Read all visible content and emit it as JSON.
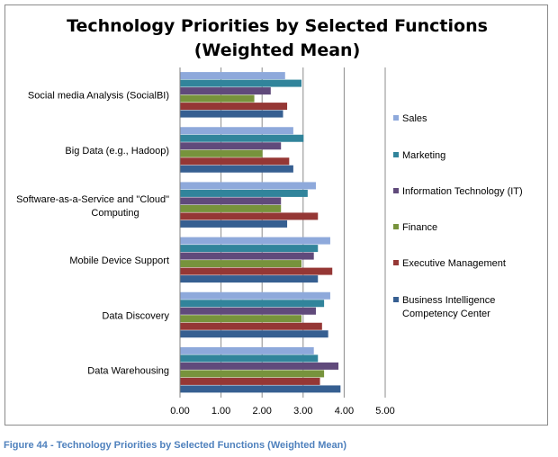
{
  "chart_data": {
    "type": "bar",
    "orientation": "horizontal",
    "title": "Technology Priorities by Selected Functions\n(Weighted Mean)",
    "categories": [
      "Social media Analysis (SocialBI)",
      "Big Data (e.g., Hadoop)",
      "Software-as-a-Service and \"Cloud\" Computing",
      "Mobile Device Support",
      "Data Discovery",
      "Data Warehousing"
    ],
    "series": [
      {
        "name": "Sales",
        "color": "#8EA9DB",
        "values": [
          2.55,
          2.75,
          3.3,
          3.65,
          3.65,
          3.25
        ]
      },
      {
        "name": "Marketing",
        "color": "#31849B",
        "values": [
          2.95,
          3.0,
          3.1,
          3.35,
          3.5,
          3.35
        ]
      },
      {
        "name": "Information Technology (IT)",
        "color": "#604A7B",
        "values": [
          2.2,
          2.45,
          2.45,
          3.25,
          3.3,
          3.85
        ]
      },
      {
        "name": "Finance",
        "color": "#77933C",
        "values": [
          1.8,
          2.0,
          2.45,
          2.95,
          2.95,
          3.5
        ]
      },
      {
        "name": "Executive Management",
        "color": "#953735",
        "values": [
          2.6,
          2.65,
          3.35,
          3.7,
          3.45,
          3.4
        ]
      },
      {
        "name": "Business Intelligence\nCompetency Center",
        "color": "#365F91",
        "values": [
          2.5,
          2.75,
          2.6,
          3.35,
          3.6,
          3.9
        ]
      }
    ],
    "xlim": [
      0,
      5
    ],
    "xticks": [
      "0.00",
      "1.00",
      "2.00",
      "3.00",
      "4.00",
      "5.00"
    ],
    "grid": true,
    "legend_position": "right"
  },
  "caption": "Figure 44 - Technology Priorities by Selected Functions (Weighted Mean)"
}
